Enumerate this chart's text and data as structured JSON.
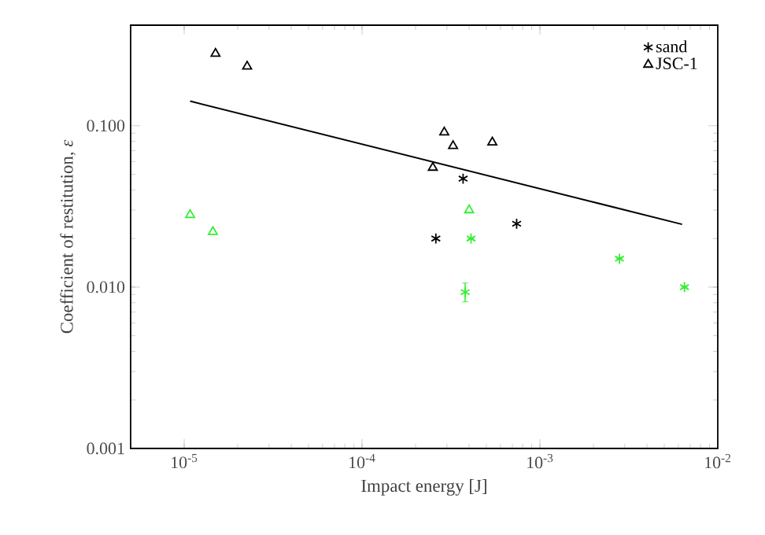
{
  "chart_data": {
    "type": "scatter",
    "xlabel": "Impact energy [J]",
    "ylabel": "Coefficient of restitution, *ε*",
    "log": "xy",
    "xlim": [
      5e-06,
      0.01
    ],
    "ylim": [
      0.001,
      0.42
    ],
    "xticks": [
      {
        "value": 1e-05,
        "label": "10$^{-5}$"
      },
      {
        "value": 0.0001,
        "label": "10$^{-4}$"
      },
      {
        "value": 0.001,
        "label": "10$^{-3}$"
      },
      {
        "value": 0.01,
        "label": "10$^{-2}$"
      }
    ],
    "yticks": [
      {
        "value": 0.001,
        "label": "0.001"
      },
      {
        "value": 0.01,
        "label": "0.010"
      },
      {
        "value": 0.1,
        "label": "0.100"
      }
    ],
    "legend": "top right",
    "series": [
      {
        "name": "sand",
        "color": "#000000",
        "marker": "cross",
        "x": [
          0.00037,
          0.00026,
          0.00074
        ],
        "values": [
          0.047,
          0.02,
          0.0247
        ]
      },
      {
        "name": "JSC-1",
        "color": "#000000",
        "marker": "triangle",
        "x": [
          1.5e-05,
          2.26e-05,
          0.00029,
          0.000325,
          0.00054,
          0.00025
        ],
        "values": [
          0.28,
          0.233,
          0.091,
          0.075,
          0.079,
          0.055
        ]
      },
      {
        "color": "#33ee33",
        "marker": "cross",
        "x": [
          0.00041,
          0.00038,
          0.0028,
          0.0065
        ],
        "values": [
          0.02,
          0.0093,
          0.015,
          0.01
        ],
        "errors": [
          null,
          [
            0.0081,
            0.0106
          ],
          null,
          null
        ]
      },
      {
        "color": "#33ee33",
        "marker": "triangle",
        "x": [
          1.08e-05,
          1.45e-05,
          0.0004
        ],
        "values": [
          0.028,
          0.022,
          0.03
        ]
      },
      {
        "type": "line",
        "color": "#000000",
        "marker": "none",
        "x": [
          1.08e-05,
          0.0063
        ],
        "values": [
          0.142,
          0.0245
        ]
      }
    ]
  }
}
